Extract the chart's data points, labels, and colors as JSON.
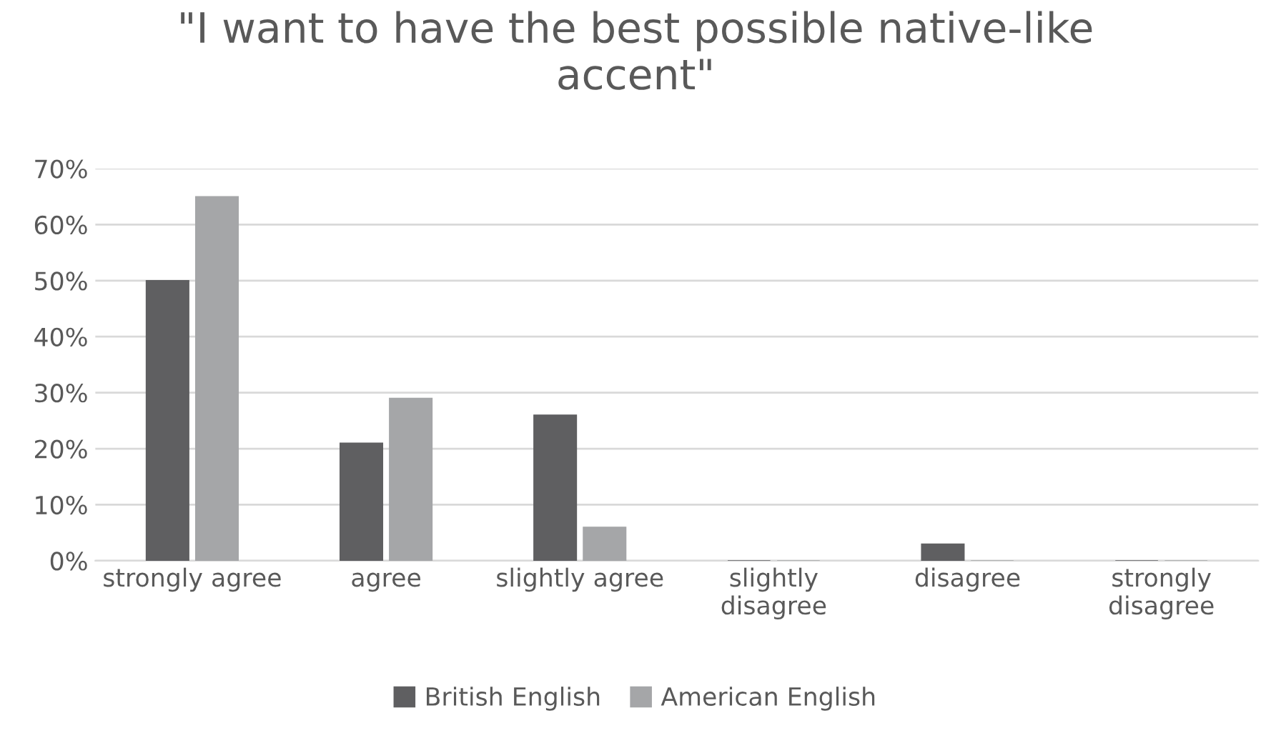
{
  "chart_data": {
    "type": "bar",
    "title": "\"I want to have the best possible native-like\naccent\"",
    "categories": [
      "strongly agree",
      "agree",
      "slightly agree",
      "slightly\ndisagree",
      "disagree",
      "strongly\ndisagree"
    ],
    "series": [
      {
        "name": "British English",
        "color": "#5f5f61",
        "values": [
          50,
          21,
          26,
          0,
          3,
          0
        ]
      },
      {
        "name": "American English",
        "color": "#a5a6a8",
        "values": [
          65,
          29,
          6,
          0,
          0,
          0
        ]
      }
    ],
    "ylim": [
      0,
      70
    ],
    "yticks": [
      {
        "value": 0,
        "label": "0%"
      },
      {
        "value": 10,
        "label": "10%"
      },
      {
        "value": 20,
        "label": "20%"
      },
      {
        "value": 30,
        "label": "30%"
      },
      {
        "value": 40,
        "label": "40%"
      },
      {
        "value": 50,
        "label": "50%"
      },
      {
        "value": 60,
        "label": "60%"
      },
      {
        "value": 70,
        "label": "70%"
      }
    ],
    "grid": "y",
    "legend": "bottom"
  }
}
